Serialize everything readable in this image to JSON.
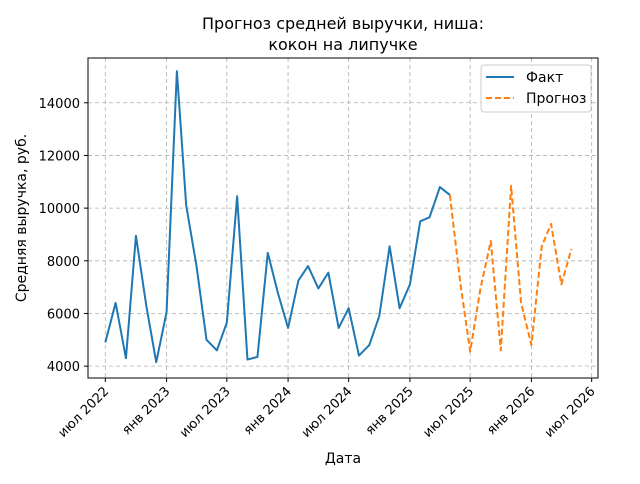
{
  "chart_data": {
    "type": "line",
    "title_lines": [
      "Прогноз средней выручки, ниша:",
      "кокон на липучке"
    ],
    "xlabel": "Дата",
    "ylabel": "Средняя выручка, руб.",
    "x_ticks": [
      {
        "date": "2022-07-01",
        "label": "июл 2022"
      },
      {
        "date": "2023-01-01",
        "label": "янв 2023"
      },
      {
        "date": "2023-07-01",
        "label": "июл 2023"
      },
      {
        "date": "2024-01-01",
        "label": "янв 2024"
      },
      {
        "date": "2024-07-01",
        "label": "июл 2024"
      },
      {
        "date": "2025-01-01",
        "label": "янв 2025"
      },
      {
        "date": "2025-07-01",
        "label": "июл 2025"
      },
      {
        "date": "2026-01-01",
        "label": "янв 2026"
      },
      {
        "date": "2026-07-01",
        "label": "июл 2026"
      }
    ],
    "y_ticks": [
      4000,
      6000,
      8000,
      10000,
      12000,
      14000
    ],
    "xlim": [
      "2022-05-10",
      "2026-07-20"
    ],
    "ylim": [
      3550,
      15700
    ],
    "grid": true,
    "legend_position": "top-right",
    "series": [
      {
        "name": "Факт",
        "color": "#1f77b4",
        "style": "solid",
        "x": [
          "2022-07-01",
          "2022-08-01",
          "2022-09-01",
          "2022-10-01",
          "2022-11-01",
          "2022-12-01",
          "2023-01-01",
          "2023-02-01",
          "2023-03-01",
          "2023-04-01",
          "2023-05-01",
          "2023-06-01",
          "2023-07-01",
          "2023-08-01",
          "2023-09-01",
          "2023-10-01",
          "2023-11-01",
          "2023-12-01",
          "2024-01-01",
          "2024-02-01",
          "2024-03-01",
          "2024-04-01",
          "2024-05-01",
          "2024-06-01",
          "2024-07-01",
          "2024-08-01",
          "2024-09-01",
          "2024-10-01",
          "2024-11-01",
          "2024-12-01",
          "2025-01-01",
          "2025-02-01",
          "2025-03-01",
          "2025-04-01",
          "2025-05-01"
        ],
        "y": [
          4900,
          6400,
          4300,
          8950,
          6300,
          4150,
          6050,
          15200,
          10100,
          7800,
          5000,
          4600,
          5650,
          10450,
          4250,
          4350,
          8300,
          6800,
          5450,
          7250,
          7800,
          6950,
          7550,
          5450,
          6200,
          4400,
          4800,
          5900,
          8550,
          6200,
          7100,
          9500,
          9650,
          10800,
          10500
        ]
      },
      {
        "name": "Прогноз",
        "color": "#ff7f0e",
        "style": "dashed",
        "x": [
          "2025-05-01",
          "2025-06-01",
          "2025-07-01",
          "2025-08-01",
          "2025-09-01",
          "2025-10-01",
          "2025-11-01",
          "2025-12-01",
          "2026-01-01",
          "2026-02-01",
          "2026-03-01",
          "2026-04-01",
          "2026-05-01"
        ],
        "y": [
          10500,
          7200,
          4550,
          6950,
          8750,
          4600,
          10850,
          6400,
          4800,
          8550,
          9400,
          7100,
          8450
        ]
      }
    ]
  }
}
